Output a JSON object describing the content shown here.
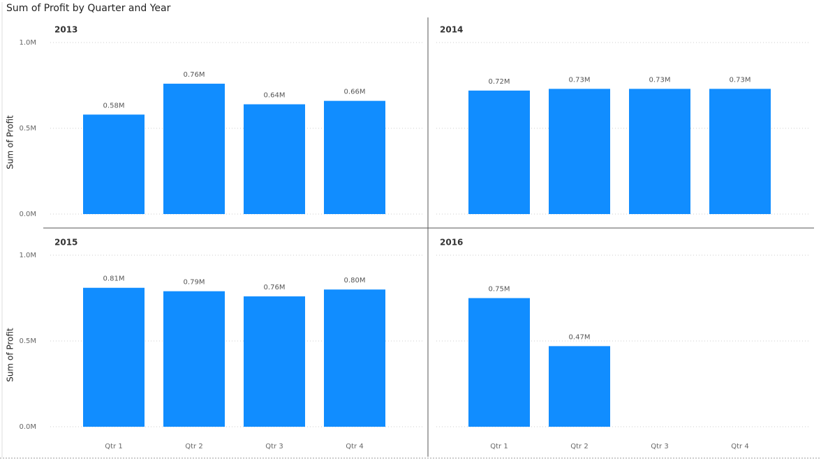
{
  "chart_data": {
    "type": "bar",
    "title": "Sum of Profit by Quarter and Year",
    "y_label": "Sum of Profit",
    "categories": [
      "Qtr 1",
      "Qtr 2",
      "Qtr 3",
      "Qtr 4"
    ],
    "color": "#118dff",
    "ylim": [
      0,
      1000000
    ],
    "yticks": [
      {
        "value": 0,
        "label": "0.0M"
      },
      {
        "value": 500000,
        "label": "0.5M"
      },
      {
        "value": 1000000,
        "label": "1.0M"
      }
    ],
    "grid": true,
    "panels": [
      {
        "title": "2013",
        "values": [
          580000,
          760000,
          640000,
          660000
        ],
        "value_labels": [
          "0.58M",
          "0.76M",
          "0.64M",
          "0.66M"
        ]
      },
      {
        "title": "2014",
        "values": [
          720000,
          730000,
          730000,
          730000
        ],
        "value_labels": [
          "0.72M",
          "0.73M",
          "0.73M",
          "0.73M"
        ]
      },
      {
        "title": "2015",
        "values": [
          810000,
          790000,
          760000,
          800000
        ],
        "value_labels": [
          "0.81M",
          "0.79M",
          "0.76M",
          "0.80M"
        ]
      },
      {
        "title": "2016",
        "values": [
          750000,
          470000,
          null,
          null
        ],
        "value_labels": [
          "0.75M",
          "0.47M",
          null,
          null
        ]
      }
    ]
  }
}
